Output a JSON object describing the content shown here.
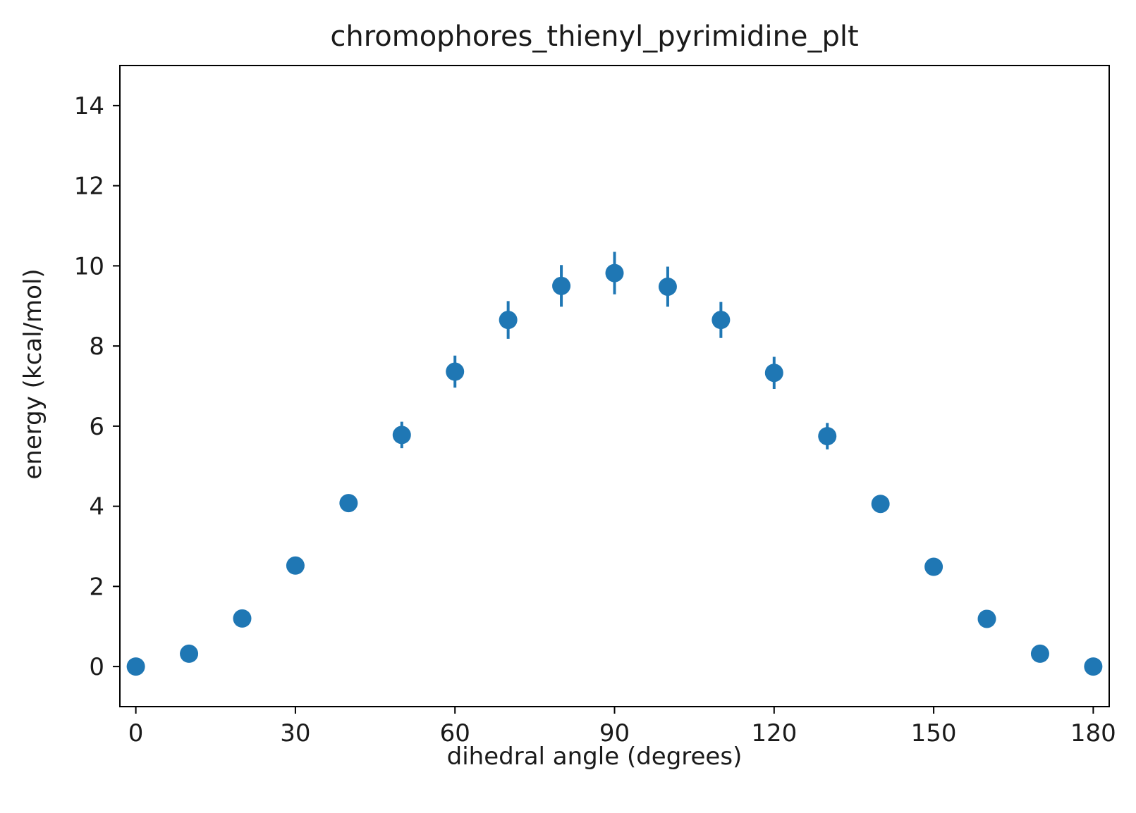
{
  "chart_data": {
    "type": "scatter",
    "title": "chromophores_thienyl_pyrimidine_plt",
    "xlabel": "dihedral angle (degrees)",
    "ylabel": "energy (kcal/mol)",
    "xlim": [
      -3,
      183
    ],
    "ylim": [
      -1,
      15
    ],
    "xticks": [
      0,
      30,
      60,
      90,
      120,
      150,
      180
    ],
    "yticks": [
      0,
      2,
      4,
      6,
      8,
      10,
      12,
      14
    ],
    "grid": false,
    "color": "#1f77b4",
    "series": [
      {
        "x": [
          0,
          10,
          20,
          30,
          40,
          50,
          60,
          70,
          80,
          90,
          100,
          110,
          120,
          130,
          140,
          150,
          160,
          170,
          180
        ],
        "y": [
          0.0,
          0.32,
          1.2,
          2.52,
          4.08,
          5.78,
          7.36,
          8.65,
          9.5,
          9.82,
          9.48,
          8.65,
          7.33,
          5.75,
          4.06,
          2.49,
          1.19,
          0.32,
          0.0
        ],
        "yerr": [
          0.0,
          0.03,
          0.06,
          0.1,
          0.15,
          0.33,
          0.4,
          0.47,
          0.52,
          0.53,
          0.5,
          0.45,
          0.4,
          0.33,
          0.2,
          0.1,
          0.05,
          0.03,
          0.0
        ]
      }
    ]
  }
}
